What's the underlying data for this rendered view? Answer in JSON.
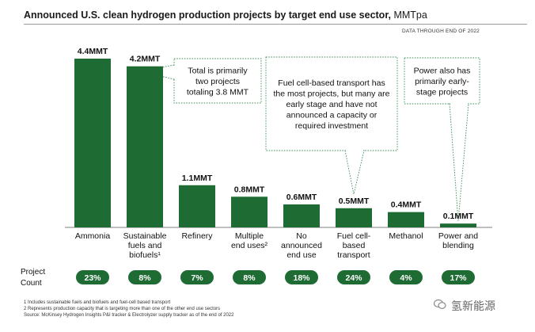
{
  "header": {
    "title": "Announced U.S. clean hydrogen production projects by target end use sector,",
    "unit": "MMTpa",
    "data_note": "DATA THROUGH END OF 2022"
  },
  "chart_data": {
    "type": "bar",
    "title": "Announced U.S. clean hydrogen production projects by target end use sector, MMTpa",
    "ylim": [
      0,
      4.4
    ],
    "grid": false,
    "legend": "none",
    "bar_color": "#1e6b34",
    "categories": [
      [
        "Ammonia"
      ],
      [
        "Sustainable",
        "fuels and",
        "biofuels¹"
      ],
      [
        "Refinery"
      ],
      [
        "Multiple",
        "end uses²"
      ],
      [
        "No",
        "announced",
        "end use"
      ],
      [
        "Fuel cell-",
        "based",
        "transport"
      ],
      [
        "Methanol"
      ],
      [
        "Power and",
        "blending"
      ]
    ],
    "values": [
      4.4,
      4.2,
      1.1,
      0.8,
      0.6,
      0.5,
      0.4,
      0.1
    ],
    "value_labels": [
      "4.4MMT",
      "4.2MMT",
      "1.1MMT",
      "0.8MMT",
      "0.6MMT",
      "0.5MMT",
      "0.4MMT",
      "0.1MMT"
    ],
    "project_count_label": [
      "Project",
      "Count"
    ],
    "project_counts": [
      "23%",
      "8%",
      "7%",
      "8%",
      "18%",
      "24%",
      "4%",
      "17%"
    ],
    "annotations": [
      {
        "text": [
          "Total is primarily",
          "two projects",
          "totaling 3.8 MMT"
        ],
        "target_index": 1
      },
      {
        "text": [
          "Fuel cell-based transport has",
          "the most projects, but many are",
          "early stage and have not",
          "announced a capacity or",
          "required investment"
        ],
        "target_index": 5
      },
      {
        "text": [
          "Power also has",
          "primarily early-",
          "stage projects"
        ],
        "target_index": 7
      }
    ]
  },
  "footnotes": [
    "1 Includes sustainable fuels and biofuels and fuel-cell based transport",
    "2 Represents production capacity that is targeting more than one of the other end use sectors",
    "Source: McKinsey Hydrogen Insights P&I tracker & Electrolyzer supply tracker as of the end of 2022"
  ],
  "watermark": {
    "text": "氢新能源",
    "icon": "wechat-icon"
  }
}
